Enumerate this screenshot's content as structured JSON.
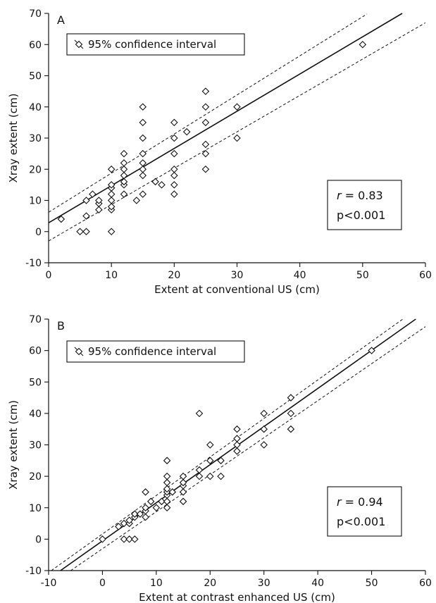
{
  "chart_data": [
    {
      "type": "scatter",
      "panel_label": "A",
      "xlabel": "Extent at conventional US (cm)",
      "ylabel": "Xray extent (cm)",
      "xlim": [
        0,
        60
      ],
      "ylim": [
        -10,
        70
      ],
      "xticks": [
        0,
        10,
        20,
        30,
        40,
        50,
        60
      ],
      "yticks": [
        -10,
        0,
        10,
        20,
        30,
        40,
        50,
        60,
        70
      ],
      "legend": {
        "text": "95% confidence interval",
        "position": "top-left"
      },
      "annotation": {
        "r_symbol": "r",
        "r_value": "= 0.83",
        "p_text": "p<0.001",
        "position": "lower-right"
      },
      "fit_line": {
        "x": [
          0,
          56.3
        ],
        "y": [
          2.8,
          70
        ]
      },
      "ci_upper": {
        "x": [
          0,
          50.7
        ],
        "y": [
          6.2,
          69.8
        ]
      },
      "ci_lower": {
        "x": [
          0,
          60
        ],
        "y": [
          -3,
          67
        ]
      },
      "points": [
        {
          "x": 2,
          "y": 4
        },
        {
          "x": 5,
          "y": 0
        },
        {
          "x": 6,
          "y": 0
        },
        {
          "x": 6,
          "y": 5
        },
        {
          "x": 6,
          "y": 10
        },
        {
          "x": 7,
          "y": 12
        },
        {
          "x": 8,
          "y": 7
        },
        {
          "x": 8,
          "y": 9
        },
        {
          "x": 8,
          "y": 10
        },
        {
          "x": 10,
          "y": 0
        },
        {
          "x": 10,
          "y": 7
        },
        {
          "x": 10,
          "y": 8
        },
        {
          "x": 10,
          "y": 10
        },
        {
          "x": 10,
          "y": 12
        },
        {
          "x": 10,
          "y": 14
        },
        {
          "x": 10,
          "y": 15
        },
        {
          "x": 10,
          "y": 20
        },
        {
          "x": 12,
          "y": 12
        },
        {
          "x": 12,
          "y": 15
        },
        {
          "x": 12,
          "y": 16
        },
        {
          "x": 12,
          "y": 18
        },
        {
          "x": 12,
          "y": 20
        },
        {
          "x": 12,
          "y": 22
        },
        {
          "x": 12,
          "y": 25
        },
        {
          "x": 14,
          "y": 10
        },
        {
          "x": 15,
          "y": 12
        },
        {
          "x": 15,
          "y": 18
        },
        {
          "x": 15,
          "y": 20
        },
        {
          "x": 15,
          "y": 22
        },
        {
          "x": 15,
          "y": 25
        },
        {
          "x": 15,
          "y": 30
        },
        {
          "x": 15,
          "y": 35
        },
        {
          "x": 15,
          "y": 40
        },
        {
          "x": 17,
          "y": 16
        },
        {
          "x": 18,
          "y": 15
        },
        {
          "x": 20,
          "y": 12
        },
        {
          "x": 20,
          "y": 15
        },
        {
          "x": 20,
          "y": 18
        },
        {
          "x": 20,
          "y": 20
        },
        {
          "x": 20,
          "y": 25
        },
        {
          "x": 20,
          "y": 30
        },
        {
          "x": 20,
          "y": 35
        },
        {
          "x": 22,
          "y": 32
        },
        {
          "x": 25,
          "y": 20
        },
        {
          "x": 25,
          "y": 25
        },
        {
          "x": 25,
          "y": 28
        },
        {
          "x": 25,
          "y": 35
        },
        {
          "x": 25,
          "y": 40
        },
        {
          "x": 25,
          "y": 45
        },
        {
          "x": 30,
          "y": 30
        },
        {
          "x": 30,
          "y": 40
        },
        {
          "x": 50,
          "y": 60
        }
      ]
    },
    {
      "type": "scatter",
      "panel_label": "B",
      "xlabel": "Extent at contrast enhanced US (cm)",
      "ylabel": "Xray extent (cm)",
      "xlim": [
        -10,
        60
      ],
      "ylim": [
        -10,
        70
      ],
      "xticks": [
        -10,
        0,
        10,
        20,
        30,
        40,
        50,
        60
      ],
      "yticks": [
        -10,
        0,
        10,
        20,
        30,
        40,
        50,
        60,
        70
      ],
      "legend": {
        "text": "95% confidence interval",
        "position": "top-left"
      },
      "annotation": {
        "r_symbol": "r",
        "r_value": "= 0.94",
        "p_text": "p<0.001",
        "position": "lower-right"
      },
      "fit_line": {
        "x": [
          -7.8,
          58.2
        ],
        "y": [
          -10,
          70
        ]
      },
      "ci_upper": {
        "x": [
          -9.5,
          55.8
        ],
        "y": [
          -10,
          70
        ]
      },
      "ci_lower": {
        "x": [
          -5.9,
          60
        ],
        "y": [
          -10,
          67.6
        ]
      },
      "points": [
        {
          "x": 0,
          "y": 0
        },
        {
          "x": 3,
          "y": 4
        },
        {
          "x": 4,
          "y": 0
        },
        {
          "x": 4,
          "y": 5
        },
        {
          "x": 5,
          "y": 0
        },
        {
          "x": 5,
          "y": 5
        },
        {
          "x": 5,
          "y": 6
        },
        {
          "x": 6,
          "y": 0
        },
        {
          "x": 6,
          "y": 7
        },
        {
          "x": 6,
          "y": 8
        },
        {
          "x": 7,
          "y": 8
        },
        {
          "x": 8,
          "y": 7
        },
        {
          "x": 8,
          "y": 9
        },
        {
          "x": 8,
          "y": 10
        },
        {
          "x": 8,
          "y": 15
        },
        {
          "x": 9,
          "y": 12
        },
        {
          "x": 10,
          "y": 10
        },
        {
          "x": 11,
          "y": 12
        },
        {
          "x": 12,
          "y": 10
        },
        {
          "x": 12,
          "y": 12
        },
        {
          "x": 12,
          "y": 14
        },
        {
          "x": 12,
          "y": 15
        },
        {
          "x": 12,
          "y": 16
        },
        {
          "x": 12,
          "y": 18
        },
        {
          "x": 12,
          "y": 20
        },
        {
          "x": 12,
          "y": 25
        },
        {
          "x": 13,
          "y": 15
        },
        {
          "x": 15,
          "y": 12
        },
        {
          "x": 15,
          "y": 15
        },
        {
          "x": 15,
          "y": 17
        },
        {
          "x": 15,
          "y": 18
        },
        {
          "x": 15,
          "y": 20
        },
        {
          "x": 18,
          "y": 20
        },
        {
          "x": 18,
          "y": 22
        },
        {
          "x": 18,
          "y": 40
        },
        {
          "x": 20,
          "y": 20
        },
        {
          "x": 20,
          "y": 25
        },
        {
          "x": 20,
          "y": 30
        },
        {
          "x": 22,
          "y": 20
        },
        {
          "x": 22,
          "y": 25
        },
        {
          "x": 25,
          "y": 28
        },
        {
          "x": 25,
          "y": 30
        },
        {
          "x": 25,
          "y": 32
        },
        {
          "x": 25,
          "y": 35
        },
        {
          "x": 30,
          "y": 30
        },
        {
          "x": 30,
          "y": 35
        },
        {
          "x": 30,
          "y": 40
        },
        {
          "x": 35,
          "y": 35
        },
        {
          "x": 35,
          "y": 40
        },
        {
          "x": 35,
          "y": 45
        },
        {
          "x": 50,
          "y": 60
        }
      ]
    }
  ]
}
